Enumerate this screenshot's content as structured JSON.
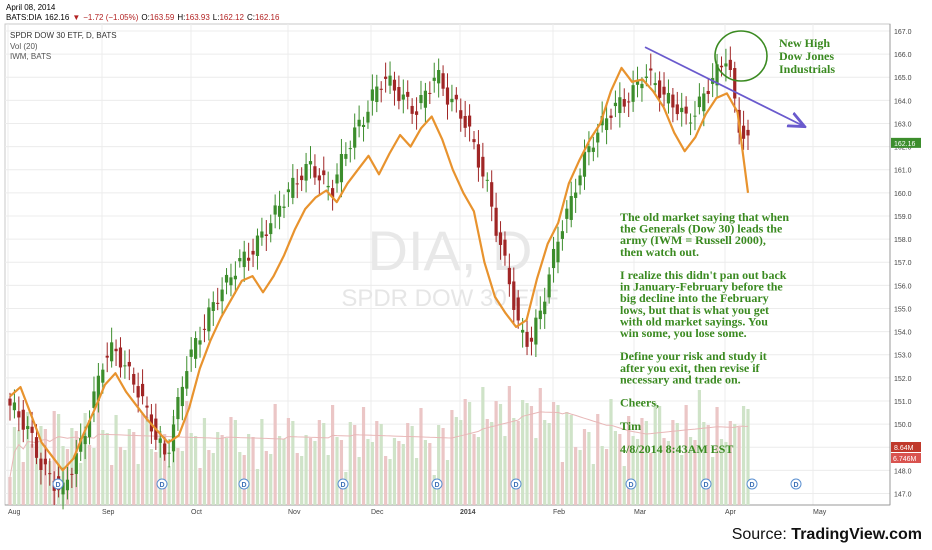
{
  "header": {
    "date": "April 08, 2014",
    "symbol": "BATS:DIA",
    "last": "162.16",
    "change": "−1.72 (−1.05%)",
    "open_label": "O:",
    "open": "163.59",
    "high_label": "H:",
    "high": "163.93",
    "low_label": "L:",
    "low": "162.12",
    "close_label": "C:",
    "close": "162.16"
  },
  "legend": {
    "title": "SPDR DOW 30 ETF, D, BATS",
    "vol": "Vol (20)",
    "iwm": "IWM, BATS"
  },
  "watermark": {
    "big": "DIA, D",
    "small": "SPDR DOW 30 ETF"
  },
  "annotations": {
    "circle_label": [
      "New High",
      "Dow Jones",
      "Industrials"
    ],
    "body": [
      "The old market saying that when",
      "the Generals (Dow 30) leads the",
      "army (IWM = Russell 2000),",
      "then watch out.",
      "",
      "I realize this didn't pan out back",
      "in January-February before the",
      "big decline into the February",
      "lows, but that is what you get",
      "with old market sayings.  You",
      "win some, you lose some.",
      "",
      "Define your risk and study it",
      "after you exit, then revise if",
      "necessary and trade on.",
      "",
      "Cheers,",
      "",
      "Tim",
      "",
      "4/8/2014  8:43AM EST"
    ]
  },
  "source": {
    "prefix": "Source: ",
    "name": "TradingView.com"
  },
  "price_labels": {
    "last": "162.16",
    "vol1": "8.64M",
    "vol2": "6.746M"
  },
  "colors": {
    "up": "#3c8d2c",
    "down": "#a02626",
    "iwm": "#e8932e",
    "trend": "#6a5acd",
    "annotation": "#3a8a20",
    "vol_up": "#cfe3c8",
    "vol_down": "#ebc6c6",
    "vol_ma": "#e8b7b7"
  },
  "chart_data": {
    "type": "candlestick",
    "title": "SPDR DOW 30 ETF, D, BATS",
    "y_ticks": [
      147.0,
      148.0,
      149.0,
      150.0,
      151.0,
      152.0,
      153.0,
      154.0,
      155.0,
      156.0,
      157.0,
      158.0,
      159.0,
      160.0,
      161.0,
      162.0,
      163.0,
      164.0,
      165.0,
      166.0,
      167.0
    ],
    "ylim": [
      146.5,
      167.3
    ],
    "x_ticks": [
      "Aug",
      "Sep",
      "Oct",
      "Nov",
      "Dec",
      "2014",
      "Feb",
      "Mar",
      "Apr",
      "May"
    ],
    "dividend_markers": [
      "D",
      "D",
      "D",
      "D",
      "D",
      "D",
      "D",
      "D",
      "D",
      "D"
    ],
    "dia_close_approx": [
      150.8,
      150.3,
      149.5,
      148.2,
      147.6,
      147.0,
      148.2,
      149.3,
      151.0,
      152.8,
      153.3,
      152.5,
      151.8,
      150.7,
      149.5,
      148.5,
      150.5,
      152.6,
      153.6,
      154.6,
      155.6,
      156.2,
      157.0,
      157.3,
      158.0,
      158.7,
      159.5,
      160.2,
      160.8,
      161.2,
      160.5,
      160.1,
      161.5,
      162.5,
      163.2,
      164.3,
      165.0,
      164.5,
      164.0,
      163.5,
      164.3,
      165.2,
      164.2,
      163.7,
      162.9,
      161.5,
      160.1,
      158.0,
      156.3,
      154.0,
      153.5,
      154.8,
      156.7,
      158.5,
      159.6,
      161.2,
      162.2,
      163.0,
      163.7,
      163.9,
      164.4,
      165.2,
      164.8,
      164.1,
      163.8,
      163.2,
      163.5,
      164.5,
      165.2,
      166.0,
      163.0,
      162.16
    ],
    "iwm_line_approx": [
      151.2,
      151.6,
      150.4,
      149.2,
      148.6,
      148.0,
      148.5,
      149.6,
      150.6,
      151.7,
      152.2,
      151.4,
      150.8,
      150.2,
      149.7,
      149.2,
      149.5,
      150.7,
      152.4,
      153.6,
      154.6,
      155.4,
      156.2,
      156.4,
      155.7,
      156.4,
      157.3,
      158.4,
      159.3,
      159.8,
      160.1,
      159.6,
      160.4,
      161.0,
      161.6,
      160.8,
      161.7,
      162.5,
      162.0,
      162.8,
      163.3,
      162.3,
      161.0,
      160.0,
      159.2,
      157.0,
      155.5,
      154.8,
      154.2,
      154.5,
      156.3,
      157.8,
      158.7,
      160.4,
      161.4,
      162.3,
      163.0,
      164.4,
      165.4,
      164.8,
      164.9,
      164.4,
      163.7,
      162.6,
      161.8,
      162.4,
      163.4,
      164.1,
      164.3,
      163.5,
      160.0
    ],
    "trendline": {
      "from": [
        "2014-03-05",
        166.3
      ],
      "to": [
        "2014-04-26",
        162.9
      ]
    },
    "volume_ma_label": "8.64M",
    "volume_last_label": "6.746M"
  }
}
